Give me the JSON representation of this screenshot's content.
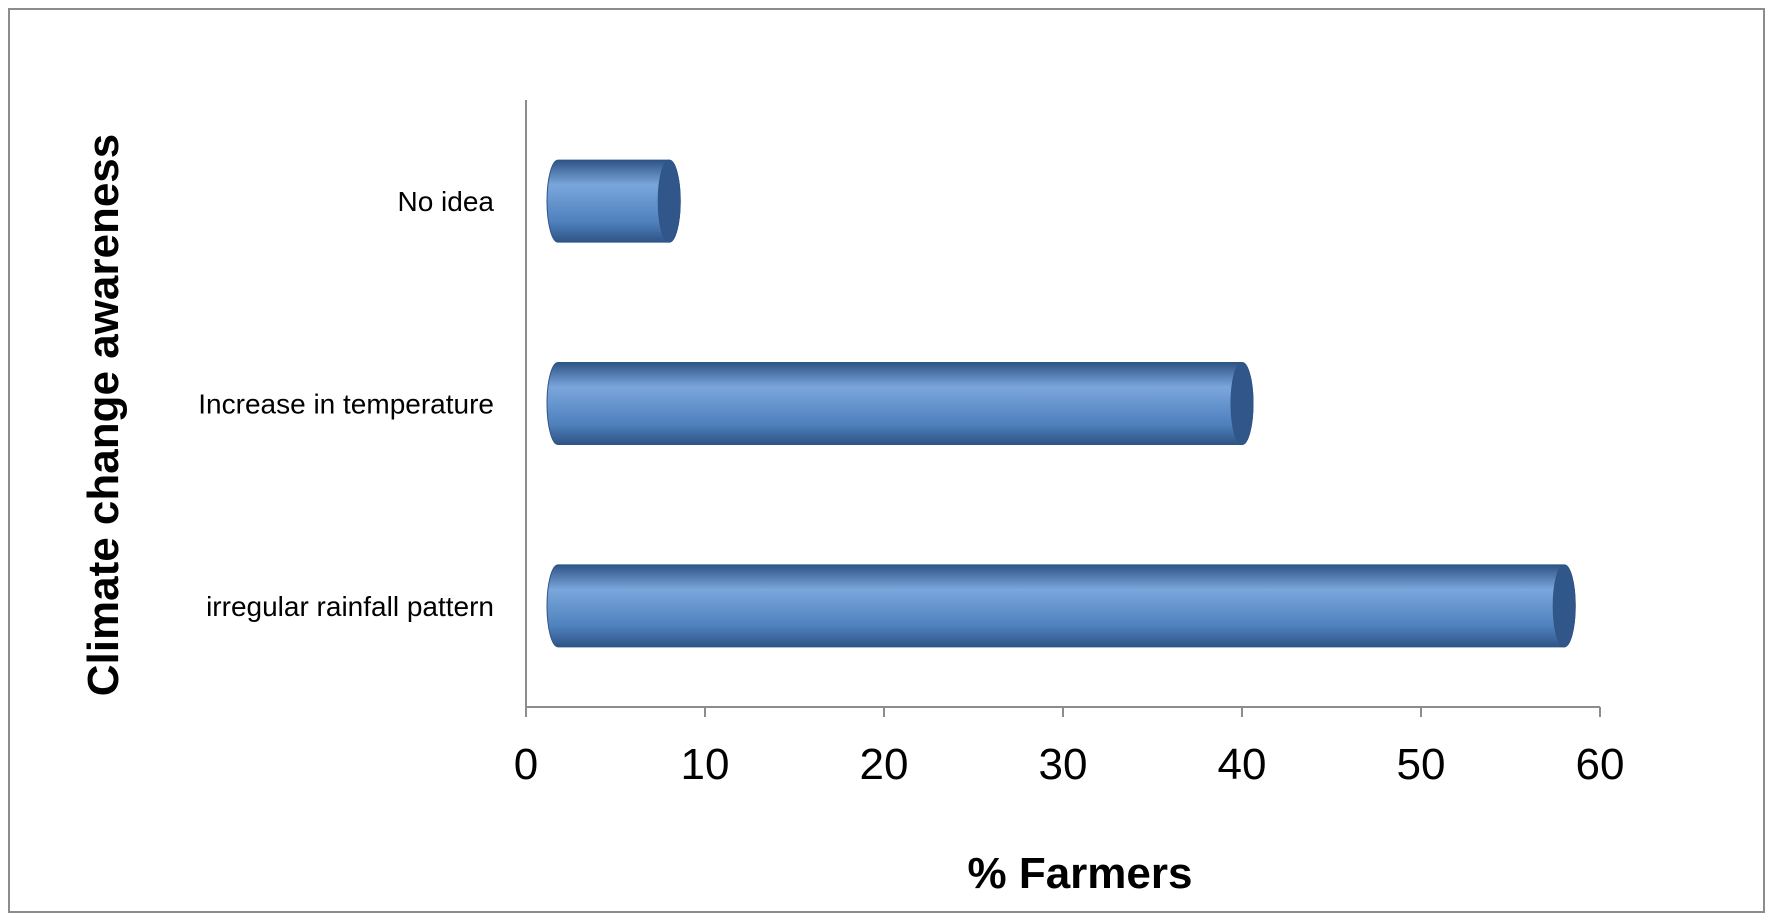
{
  "chart_data": {
    "type": "bar",
    "orientation": "horizontal",
    "style": "3d-cylinder",
    "categories": [
      "No idea",
      "Increase in temperature",
      "irregular rainfall pattern"
    ],
    "values": [
      8,
      40,
      58
    ],
    "xlabel": "% Farmers",
    "ylabel": "Climate change awareness",
    "xlim": [
      0,
      60
    ],
    "xticks": [
      "0",
      "10",
      "20",
      "30",
      "40",
      "50",
      "60"
    ],
    "grid": false,
    "legend": "none",
    "colors": {
      "bar_body": "#4f81bd",
      "bar_light": "#7aa6dc",
      "bar_dark": "#2f5486",
      "bar_cap": "#31578a",
      "axis": "#8c8c8c"
    }
  }
}
